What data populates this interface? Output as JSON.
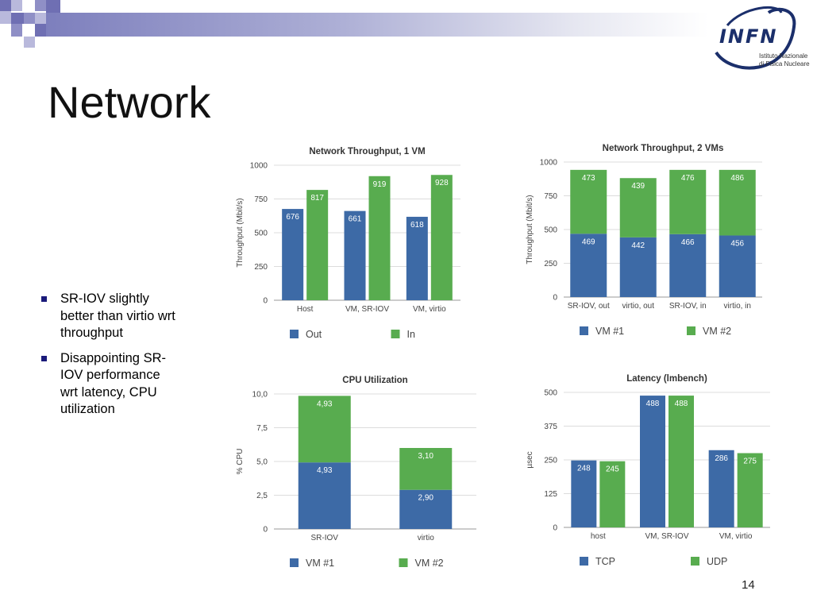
{
  "slide": {
    "title": "Network",
    "page_number": "14",
    "bullets": [
      "SR-IOV slightly better than virtio wrt throughput",
      "Disappointing SR-IOV performance wrt latency, CPU utilization"
    ],
    "logo": {
      "name": "INFN",
      "subtitle_line1": "Istituto Nazionale",
      "subtitle_line2": "di Fisica Nucleare"
    }
  },
  "colors": {
    "blue": "#3d6aa6",
    "green": "#58ac4f",
    "grid": "#dcdcdc",
    "label": "#555555"
  },
  "chart_data": [
    {
      "type": "bar",
      "title": "Network Throughput, 1 VM",
      "ylabel": "Throughput (Mbit/s)",
      "ylim": [
        0,
        1000
      ],
      "yticks": [
        "0",
        "250",
        "500",
        "750",
        "1000"
      ],
      "yticks_values": [
        0,
        250,
        500,
        750,
        1000
      ],
      "categories": [
        "Host",
        "VM, SR-IOV",
        "VM, virtio"
      ],
      "stacked": false,
      "series": [
        {
          "name": "Out",
          "color": "#3d6aa6",
          "values": [
            676,
            661,
            618
          ],
          "labels": [
            "676",
            "661",
            "618"
          ]
        },
        {
          "name": "In",
          "color": "#58ac4f",
          "values": [
            817,
            919,
            928
          ],
          "labels": [
            "817",
            "919",
            "928"
          ]
        }
      ],
      "legend": "bottom"
    },
    {
      "type": "bar",
      "title": "Network Throughput, 2 VMs",
      "ylabel": "Throughput (Mbit/s)",
      "ylim": [
        0,
        1000
      ],
      "yticks": [
        "0",
        "250",
        "500",
        "750",
        "1000"
      ],
      "yticks_values": [
        0,
        250,
        500,
        750,
        1000
      ],
      "categories": [
        "SR-IOV, out",
        "virtio, out",
        "SR-IOV, in",
        "virtio, in"
      ],
      "stacked": true,
      "series": [
        {
          "name": "VM #1",
          "color": "#3d6aa6",
          "values": [
            469,
            442,
            466,
            456
          ],
          "labels": [
            "469",
            "442",
            "466",
            "456"
          ]
        },
        {
          "name": "VM #2",
          "color": "#58ac4f",
          "values": [
            473,
            439,
            476,
            486
          ],
          "labels": [
            "473",
            "439",
            "476",
            "486"
          ]
        }
      ],
      "legend": "bottom"
    },
    {
      "type": "bar",
      "title": "CPU Utilization",
      "ylabel": "% CPU",
      "ylim": [
        0,
        10
      ],
      "yticks": [
        "0",
        "2,5",
        "5,0",
        "7,5",
        "10,0"
      ],
      "yticks_values": [
        0,
        2.5,
        5,
        7.5,
        10
      ],
      "categories": [
        "SR-IOV",
        "virtio"
      ],
      "stacked": true,
      "series": [
        {
          "name": "VM #1",
          "color": "#3d6aa6",
          "values": [
            4.93,
            2.9
          ],
          "labels": [
            "4,93",
            "2,90"
          ]
        },
        {
          "name": "VM #2",
          "color": "#58ac4f",
          "values": [
            4.93,
            3.1
          ],
          "labels": [
            "4,93",
            "3,10"
          ]
        }
      ],
      "legend": "bottom"
    },
    {
      "type": "bar",
      "title": "Latency (lmbench)",
      "ylabel": "µsec",
      "ylim": [
        0,
        500
      ],
      "yticks": [
        "0",
        "125",
        "250",
        "375",
        "500"
      ],
      "yticks_values": [
        0,
        125,
        250,
        375,
        500
      ],
      "categories": [
        "host",
        "VM, SR-IOV",
        "VM, virtio"
      ],
      "stacked": false,
      "series": [
        {
          "name": "TCP",
          "color": "#3d6aa6",
          "values": [
            248,
            488,
            286
          ],
          "labels": [
            "248",
            "488",
            "286"
          ]
        },
        {
          "name": "UDP",
          "color": "#58ac4f",
          "values": [
            245,
            488,
            275
          ],
          "labels": [
            "245",
            "488",
            "275"
          ]
        }
      ],
      "legend": "bottom"
    }
  ]
}
